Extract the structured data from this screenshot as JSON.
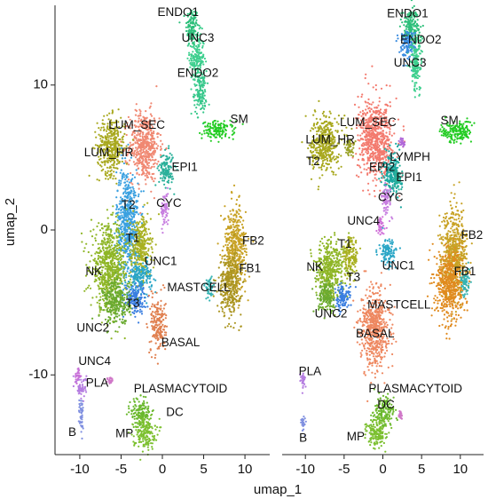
{
  "chart_data": {
    "type": "scatter",
    "title": "",
    "xlabel": "umap_1",
    "ylabel": "umap_2",
    "xlim": [
      -13,
      13
    ],
    "ylim": [
      -15.5,
      15.5
    ],
    "x_ticks": [
      "-10",
      "-5",
      "0",
      "5",
      "10"
    ],
    "y_ticks": [
      "10",
      "0",
      "-10"
    ],
    "x_tick_values": [
      -10,
      -5,
      0,
      5,
      10
    ],
    "y_tick_values": [
      10,
      0,
      -10
    ],
    "grid": false,
    "legend": "none",
    "panels": [
      {
        "clusters": [
          {
            "name": "ENDO1",
            "color": "#2dbf7a",
            "x": 3.6,
            "y": 14.0,
            "sx": 0.5,
            "sy": 0.9
          },
          {
            "name": "UNC3",
            "color": "#3ecf8e",
            "x": 4.2,
            "y": 11.8,
            "sx": 0.6,
            "sy": 1.2
          },
          {
            "name": "ENDO2",
            "color": "#35c78a",
            "x": 4.6,
            "y": 9.5,
            "sx": 0.5,
            "sy": 1.0
          },
          {
            "name": "SM",
            "color": "#22cc22",
            "x": 6.8,
            "y": 6.9,
            "sx": 1.3,
            "sy": 0.4
          },
          {
            "name": "LUM_SEC",
            "color": "#f08872",
            "x": -2.2,
            "y": 5.8,
            "sx": 1.2,
            "sy": 1.6
          },
          {
            "name": "LUM_HR",
            "color": "#a8a81e",
            "x": -6.2,
            "y": 5.8,
            "sx": 1.1,
            "sy": 1.3
          },
          {
            "name": "EPI1",
            "color": "#2ab09a",
            "x": 0.5,
            "y": 4.2,
            "sx": 0.6,
            "sy": 0.8
          },
          {
            "name": "CYC",
            "color": "#c77ee0",
            "x": 0.3,
            "y": 1.4,
            "sx": 0.3,
            "sy": 0.8
          },
          {
            "name": "T2",
            "color": "#3aa0e0",
            "x": -4.2,
            "y": 0.5,
            "sx": 0.9,
            "sy": 2.5
          },
          {
            "name": "T1",
            "color": "#a8b020",
            "x": -2.6,
            "y": -1.2,
            "sx": 0.8,
            "sy": 1.4
          },
          {
            "name": "NK",
            "color": "#8fb627",
            "x": -6.4,
            "y": -2.6,
            "sx": 1.5,
            "sy": 1.9
          },
          {
            "name": "UNC1",
            "color": "#2aa6c6",
            "x": -2.6,
            "y": -3.2,
            "sx": 0.9,
            "sy": 0.7
          },
          {
            "name": "T3",
            "color": "#3a7ee0",
            "x": -3.3,
            "y": -4.7,
            "sx": 0.8,
            "sy": 0.7
          },
          {
            "name": "UNC2",
            "color": "#6aaa30",
            "x": -5.5,
            "y": -5.0,
            "sx": 1.1,
            "sy": 1.0
          },
          {
            "name": "MASTCELL",
            "color": "#36b3b3",
            "x": 5.7,
            "y": -4.0,
            "sx": 0.4,
            "sy": 0.5
          },
          {
            "name": "FB2",
            "color": "#c8a225",
            "x": 8.8,
            "y": -1.3,
            "sx": 0.9,
            "sy": 1.9
          },
          {
            "name": "FB1",
            "color": "#ab9521",
            "x": 8.2,
            "y": -3.8,
            "sx": 0.9,
            "sy": 1.4
          },
          {
            "name": "BASAL",
            "color": "#e08050",
            "x": -0.5,
            "y": -6.5,
            "sx": 0.6,
            "sy": 1.3
          },
          {
            "name": "UNC4",
            "color": "#c870d8",
            "x": -10.2,
            "y": -10.0,
            "sx": 0.3,
            "sy": 0.4
          },
          {
            "name": "PLA",
            "color": "#b47ce0",
            "x": -9.8,
            "y": -10.9,
            "sx": 0.4,
            "sy": 0.5
          },
          {
            "name": "PLASMACYTOID",
            "color": "#d078c8",
            "x": -6.3,
            "y": -10.4,
            "sx": 0.2,
            "sy": 0.2
          },
          {
            "name": "B",
            "color": "#8090e0",
            "x": -9.8,
            "y": -12.8,
            "sx": 0.2,
            "sy": 0.9
          },
          {
            "name": "DC",
            "color": "#6ab82e",
            "x": -2.6,
            "y": -12.6,
            "sx": 0.8,
            "sy": 0.7
          },
          {
            "name": "MP",
            "color": "#7cc030",
            "x": -2.2,
            "y": -14.0,
            "sx": 0.9,
            "sy": 0.7
          }
        ]
      },
      {
        "clusters": [
          {
            "name": "ENDO1",
            "color": "#2dbf7a",
            "x": 3.6,
            "y": 14.1,
            "sx": 0.8,
            "sy": 0.8
          },
          {
            "name": "ENDO2",
            "color": "#3a8ce0",
            "x": 3.2,
            "y": 12.8,
            "sx": 0.7,
            "sy": 0.7
          },
          {
            "name": "UNC3",
            "color": "#3ecf8e",
            "x": 4.3,
            "y": 11.5,
            "sx": 0.5,
            "sy": 1.3
          },
          {
            "name": "SM",
            "color": "#22cc22",
            "x": 9.5,
            "y": 6.8,
            "sx": 1.3,
            "sy": 0.5
          },
          {
            "name": "LUM_SEC",
            "color": "#f37a6e",
            "x": -0.9,
            "y": 6.2,
            "sx": 1.5,
            "sy": 1.8
          },
          {
            "name": "LUM_HR",
            "color": "#a8a81e",
            "x": -7.5,
            "y": 6.0,
            "sx": 1.2,
            "sy": 1.3
          },
          {
            "name": "LYMPH",
            "color": "#b068d8",
            "x": 2.5,
            "y": 6.0,
            "sx": 0.2,
            "sy": 0.2
          },
          {
            "name": "T2",
            "color": "#9aa228",
            "x": -4.3,
            "y": 5.8,
            "sx": 0.4,
            "sy": 0.5
          },
          {
            "name": "EPI2",
            "color": "#1aa8a0",
            "x": 1.2,
            "y": 3.9,
            "sx": 0.8,
            "sy": 1.0
          },
          {
            "name": "EPI1",
            "color": "#2ab09a",
            "x": 1.9,
            "y": 3.6,
            "sx": 0.4,
            "sy": 0.6
          },
          {
            "name": "CYC",
            "color": "#c77ee0",
            "x": 0.5,
            "y": 2.1,
            "sx": 0.4,
            "sy": 0.7
          },
          {
            "name": "UNC4",
            "color": "#d070d8",
            "x": -0.3,
            "y": 0.2,
            "sx": 0.4,
            "sy": 0.4
          },
          {
            "name": "T1",
            "color": "#a8b020",
            "x": -4.2,
            "y": -1.8,
            "sx": 0.7,
            "sy": 0.9
          },
          {
            "name": "NK",
            "color": "#8fb627",
            "x": -6.9,
            "y": -2.8,
            "sx": 1.2,
            "sy": 1.4
          },
          {
            "name": "T3",
            "color": "#3a7ee0",
            "x": -5.2,
            "y": -4.7,
            "sx": 0.7,
            "sy": 0.6
          },
          {
            "name": "UNC1",
            "color": "#2aa6c6",
            "x": 0.6,
            "y": -1.6,
            "sx": 0.7,
            "sy": 0.6
          },
          {
            "name": "UNC2",
            "color": "#6aaa30",
            "x": -7.2,
            "y": -4.6,
            "sx": 0.8,
            "sy": 0.7
          },
          {
            "name": "FB2",
            "color": "#c8a225",
            "x": 9.2,
            "y": -1.6,
            "sx": 1.1,
            "sy": 2.0
          },
          {
            "name": "FB1",
            "color": "#e08a1e",
            "x": 8.6,
            "y": -3.8,
            "sx": 1.2,
            "sy": 1.6
          },
          {
            "name": "MASTCELL",
            "color": "#36b3b3",
            "x": 10.6,
            "y": -3.6,
            "sx": 0.4,
            "sy": 0.7
          },
          {
            "name": "BASAL",
            "color": "#ee8860",
            "x": -1.0,
            "y": -6.8,
            "sx": 1.2,
            "sy": 1.8
          },
          {
            "name": "PLA",
            "color": "#b47ce0",
            "x": -10.3,
            "y": -10.4,
            "sx": 0.3,
            "sy": 0.4
          },
          {
            "name": "PLASMACYTOID",
            "color": "#d078c8",
            "x": 2.3,
            "y": -12.8,
            "sx": 0.2,
            "sy": 0.2
          },
          {
            "name": "B",
            "color": "#8090e0",
            "x": -10.3,
            "y": -13.3,
            "sx": 0.2,
            "sy": 0.4
          },
          {
            "name": "DC",
            "color": "#6ab82e",
            "x": 0.2,
            "y": -12.5,
            "sx": 0.9,
            "sy": 0.7
          },
          {
            "name": "MP",
            "color": "#7cc030",
            "x": -0.8,
            "y": -14.0,
            "sx": 0.9,
            "sy": 0.7
          }
        ]
      }
    ],
    "labels": [
      [
        {
          "text": "ENDO1",
          "x": 1.9,
          "y": 15.0
        },
        {
          "text": "UNC3",
          "x": 4.3,
          "y": 13.2
        },
        {
          "text": "ENDO2",
          "x": 4.3,
          "y": 10.8
        },
        {
          "text": "SM",
          "x": 9.3,
          "y": 7.6
        },
        {
          "text": "LUM_SEC",
          "x": -3.1,
          "y": 7.2
        },
        {
          "text": "LUM_HR",
          "x": -6.5,
          "y": 5.3
        },
        {
          "text": "EPI1",
          "x": 2.7,
          "y": 4.3
        },
        {
          "text": "CYC",
          "x": 0.8,
          "y": 1.8
        },
        {
          "text": "T2",
          "x": -4.1,
          "y": 1.7
        },
        {
          "text": "T1",
          "x": -3.6,
          "y": -0.6
        },
        {
          "text": "NK",
          "x": -8.3,
          "y": -2.9
        },
        {
          "text": "UNC1",
          "x": -0.2,
          "y": -2.2
        },
        {
          "text": "T3",
          "x": -3.6,
          "y": -5.1
        },
        {
          "text": "UNC2",
          "x": -8.4,
          "y": -6.8
        },
        {
          "text": "MASTCELL",
          "x": 4.4,
          "y": -4.0
        },
        {
          "text": "FB2",
          "x": 11.0,
          "y": -0.8
        },
        {
          "text": "FB1",
          "x": 10.6,
          "y": -2.7
        },
        {
          "text": "BASAL",
          "x": 2.2,
          "y": -7.8
        },
        {
          "text": "UNC4",
          "x": -8.2,
          "y": -9.1
        },
        {
          "text": "PLA",
          "x": -7.9,
          "y": -10.6
        },
        {
          "text": "PLASMACYTOID",
          "x": 2.2,
          "y": -11.0
        },
        {
          "text": "B",
          "x": -10.9,
          "y": -14.0
        },
        {
          "text": "DC",
          "x": 1.5,
          "y": -12.6
        },
        {
          "text": "MP",
          "x": -4.6,
          "y": -14.1
        }
      ],
      [
        {
          "text": "ENDO1",
          "x": 3.2,
          "y": 14.9
        },
        {
          "text": "ENDO2",
          "x": 4.9,
          "y": 13.1
        },
        {
          "text": "UNC3",
          "x": 3.5,
          "y": 11.5
        },
        {
          "text": "SM",
          "x": 8.6,
          "y": 7.5
        },
        {
          "text": "LUM_SEC",
          "x": -1.9,
          "y": 7.4
        },
        {
          "text": "LUM_HR",
          "x": -6.8,
          "y": 6.2
        },
        {
          "text": "LYMPH",
          "x": 3.5,
          "y": 5.0
        },
        {
          "text": "T2",
          "x": -9.0,
          "y": 4.7
        },
        {
          "text": "EPI2",
          "x": -0.1,
          "y": 4.3
        },
        {
          "text": "EPI1",
          "x": 3.4,
          "y": 3.6
        },
        {
          "text": "CYC",
          "x": 1.0,
          "y": 2.2
        },
        {
          "text": "UNC4",
          "x": -2.5,
          "y": 0.6
        },
        {
          "text": "T1",
          "x": -4.9,
          "y": -1.0
        },
        {
          "text": "NK",
          "x": -8.8,
          "y": -2.6
        },
        {
          "text": "T3",
          "x": -3.8,
          "y": -3.3
        },
        {
          "text": "UNC1",
          "x": 2.0,
          "y": -2.5
        },
        {
          "text": "UNC2",
          "x": -6.7,
          "y": -5.8
        },
        {
          "text": "FB2",
          "x": 11.5,
          "y": -0.4
        },
        {
          "text": "FB1",
          "x": 10.6,
          "y": -2.9
        },
        {
          "text": "MASTCELL",
          "x": 2.1,
          "y": -5.2
        },
        {
          "text": "BASAL",
          "x": -1.0,
          "y": -7.2
        },
        {
          "text": "PLA",
          "x": -9.4,
          "y": -9.8
        },
        {
          "text": "PLASMACYTOID",
          "x": 4.2,
          "y": -11.0
        },
        {
          "text": "B",
          "x": -10.3,
          "y": -14.4
        },
        {
          "text": "DC",
          "x": 0.4,
          "y": -12.1
        },
        {
          "text": "MP",
          "x": -3.5,
          "y": -14.3
        }
      ]
    ]
  }
}
